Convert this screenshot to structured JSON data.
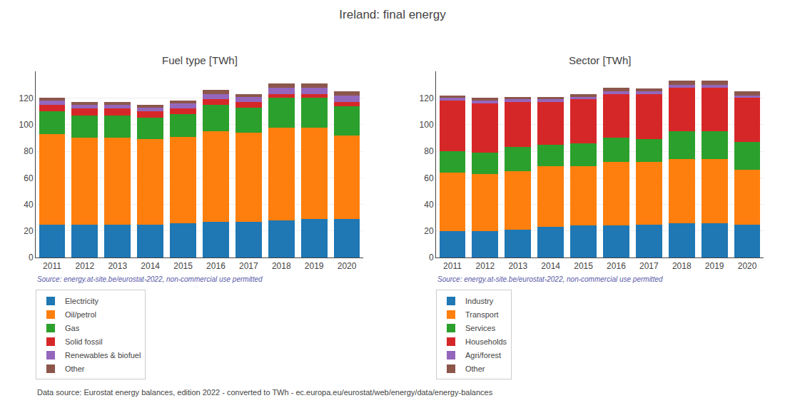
{
  "title": "Ireland: final energy",
  "annotations": [
    "Data source: Eurostat energy balances, edition 2022 - converted to TWh - ec.europa.eu/eurostat/web/energy/data/energy-balances"
  ],
  "chart_data": [
    {
      "type": "bar",
      "title": "Fuel type [TWh]",
      "stacked": true,
      "grid": true,
      "legend": "bottom",
      "categories": [
        "2011",
        "2012",
        "2013",
        "2014",
        "2015",
        "2016",
        "2017",
        "2018",
        "2019",
        "2020"
      ],
      "series": [
        {
          "name": "Electricity",
          "color": "#1f77b4",
          "values": [
            25,
            25,
            25,
            25,
            26,
            27,
            27,
            28,
            29,
            29
          ]
        },
        {
          "name": "Oil/petrol",
          "color": "#ff7f0e",
          "values": [
            68,
            65,
            65,
            64,
            65,
            68,
            67,
            70,
            69,
            63
          ]
        },
        {
          "name": "Gas",
          "color": "#2ca02c",
          "values": [
            17,
            17,
            17,
            16,
            17,
            20,
            19,
            22,
            22,
            22
          ]
        },
        {
          "name": "Solid fossil",
          "color": "#d62728",
          "values": [
            5,
            5,
            5,
            5,
            4,
            4,
            4,
            3,
            3,
            3
          ]
        },
        {
          "name": "Renewables & biofuel",
          "color": "#9467bd",
          "values": [
            3,
            3,
            3,
            3,
            4,
            4,
            4,
            5,
            5,
            5
          ]
        },
        {
          "name": "Other",
          "color": "#8c564b",
          "values": [
            2,
            2,
            2,
            2,
            2,
            3,
            2,
            3,
            3,
            3
          ]
        }
      ],
      "ylim": [
        0,
        140
      ],
      "yticks": [
        0,
        20,
        40,
        60,
        80,
        100,
        120
      ],
      "annotations": [
        "Source: energy.at-site.be/eurostat-2022, non-commercial use permitted"
      ]
    },
    {
      "type": "bar",
      "title": "Sector [TWh]",
      "stacked": true,
      "grid": true,
      "legend": "bottom",
      "categories": [
        "2011",
        "2012",
        "2013",
        "2014",
        "2015",
        "2016",
        "2017",
        "2018",
        "2019",
        "2020"
      ],
      "series": [
        {
          "name": "Industry",
          "color": "#1f77b4",
          "values": [
            20,
            20,
            21,
            23,
            24,
            24,
            25,
            26,
            26,
            25
          ]
        },
        {
          "name": "Transport",
          "color": "#ff7f0e",
          "values": [
            44,
            43,
            44,
            46,
            45,
            48,
            47,
            48,
            48,
            41
          ]
        },
        {
          "name": "Services",
          "color": "#2ca02c",
          "values": [
            16,
            16,
            18,
            16,
            17,
            18,
            17,
            21,
            21,
            21
          ]
        },
        {
          "name": "Households",
          "color": "#d62728",
          "values": [
            38,
            37,
            34,
            32,
            33,
            33,
            34,
            33,
            33,
            33
          ]
        },
        {
          "name": "Agri/forest",
          "color": "#9467bd",
          "values": [
            2,
            2,
            2,
            2,
            2,
            2,
            2,
            2,
            2,
            2
          ]
        },
        {
          "name": "Other",
          "color": "#8c564b",
          "values": [
            2,
            2,
            2,
            2,
            2,
            3,
            2,
            3,
            3,
            3
          ]
        }
      ],
      "ylim": [
        0,
        140
      ],
      "yticks": [
        0,
        20,
        40,
        60,
        80,
        100,
        120
      ],
      "annotations": [
        "Source: energy.at-site.be/eurostat-2022, non-commercial use permitted"
      ]
    }
  ]
}
